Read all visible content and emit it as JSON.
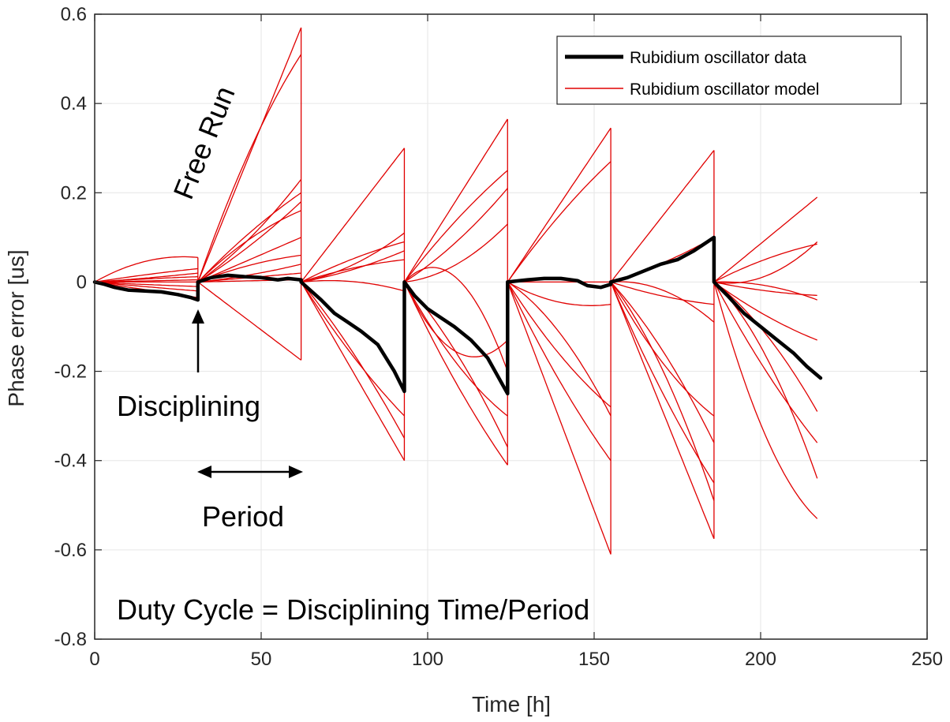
{
  "chart_data": {
    "type": "line",
    "xlabel": "Time [h]",
    "ylabel": "Phase error [us]",
    "xlim": [
      0,
      250
    ],
    "ylim": [
      -0.8,
      0.6
    ],
    "xticks": [
      0,
      50,
      100,
      150,
      200,
      250
    ],
    "xtick_labels": [
      "0",
      "50",
      "100",
      "150",
      "200",
      "250"
    ],
    "yticks": [
      -0.8,
      -0.6,
      -0.4,
      -0.2,
      0,
      0.2,
      0.4,
      0.6
    ],
    "ytick_labels": [
      "-0.8",
      "-0.6",
      "-0.4",
      "-0.2",
      "0",
      "0.2",
      "0.4",
      "0.6"
    ],
    "grid": true,
    "legend_position": "top-right",
    "colors": {
      "data": "#000000",
      "model": "#e00000",
      "grid": "#e6e6e6",
      "axis": "#262626"
    },
    "legend": [
      {
        "label": "Rubidium oscillator data",
        "style": "data"
      },
      {
        "label": "Rubidium oscillator model",
        "style": "model"
      }
    ],
    "data_series": {
      "name": "Rubidium oscillator data",
      "x": [
        0,
        3,
        6,
        10,
        15,
        20,
        25,
        29,
        31,
        31,
        35,
        40,
        45,
        50,
        55,
        58,
        62,
        62,
        68,
        72,
        76,
        80,
        85,
        90,
        93,
        93,
        96,
        100,
        104,
        108,
        113,
        118,
        121,
        124,
        124,
        130,
        135,
        140,
        145,
        148,
        152,
        155,
        155,
        160,
        165,
        170,
        175,
        180,
        184,
        186,
        186,
        190,
        195,
        200,
        205,
        210,
        214,
        218
      ],
      "y": [
        0,
        -0.005,
        -0.012,
        -0.018,
        -0.02,
        -0.022,
        -0.028,
        -0.035,
        -0.04,
        0,
        0.01,
        0.015,
        0.012,
        0.01,
        0.005,
        0.008,
        0.005,
        0,
        -0.04,
        -0.07,
        -0.09,
        -0.11,
        -0.14,
        -0.2,
        -0.245,
        0,
        -0.03,
        -0.06,
        -0.08,
        -0.1,
        -0.13,
        -0.17,
        -0.21,
        -0.25,
        0,
        0.005,
        0.008,
        0.008,
        0.003,
        -0.008,
        -0.012,
        -0.005,
        0,
        0.01,
        0.025,
        0.04,
        0.05,
        0.07,
        0.09,
        0.1,
        0,
        -0.03,
        -0.07,
        -0.1,
        -0.13,
        -0.16,
        -0.19,
        -0.215
      ]
    },
    "model_segments": [
      {
        "x_start": 0,
        "x_end": 31,
        "end_values": [
          0.055,
          0.03,
          0.02,
          0.012,
          0.005,
          0,
          -0.01,
          -0.02,
          -0.035
        ],
        "curvatures": [
          1.4,
          0.2,
          -0.2,
          0.3,
          0,
          -0.3,
          0.2,
          0.1,
          0
        ]
      },
      {
        "x_start": 31,
        "x_end": 62,
        "end_values": [
          0.57,
          0.51,
          0.23,
          0.2,
          0.18,
          0.16,
          0.1,
          0.06,
          0.04,
          0.02,
          0.005,
          -0.175
        ],
        "curvatures": [
          0,
          0.3,
          -0.3,
          0.2,
          -0.2,
          0.4,
          0,
          0.5,
          -0.4,
          0,
          0.2,
          0
        ]
      },
      {
        "x_start": 62,
        "x_end": 93,
        "end_values": [
          0.3,
          0.11,
          0.09,
          0.07,
          0.05,
          -0.02,
          -0.3,
          -0.35,
          -0.4
        ],
        "curvatures": [
          0,
          -0.6,
          0.3,
          -0.4,
          0.5,
          -2.2,
          0.2,
          -0.2,
          0
        ]
      },
      {
        "x_start": 93,
        "x_end": 124,
        "end_values": [
          0.365,
          0.25,
          0.21,
          0.13,
          -0.13,
          -0.2,
          -0.3,
          -0.37,
          -0.41
        ],
        "curvatures": [
          0,
          0.2,
          -0.3,
          -0.8,
          2.8,
          -2.2,
          0.4,
          -0.3,
          0.2
        ]
      },
      {
        "x_start": 124,
        "x_end": 155,
        "end_values": [
          0.345,
          0.27,
          0.0,
          -0.05,
          -0.28,
          -0.3,
          -0.4,
          -0.61
        ],
        "curvatures": [
          0,
          0.2,
          3.0,
          1.6,
          0.3,
          -0.5,
          0.2,
          0
        ]
      },
      {
        "x_start": 155,
        "x_end": 186,
        "end_values": [
          0.295,
          0.1,
          -0.05,
          -0.09,
          -0.3,
          -0.36,
          -0.45,
          -0.49,
          -0.575
        ],
        "curvatures": [
          0,
          -0.3,
          0.5,
          -1.2,
          0.4,
          -0.3,
          0.2,
          -0.4,
          0
        ]
      },
      {
        "x_start": 186,
        "x_end": 217,
        "end_values": [
          0.19,
          0.09,
          0.085,
          -0.03,
          -0.04,
          -0.13,
          -0.29,
          -0.36,
          -0.44,
          -0.53
        ],
        "curvatures": [
          0,
          -1.4,
          0.4,
          0.6,
          -1.2,
          0.3,
          -0.4,
          0.2,
          -0.5,
          0.6
        ]
      }
    ],
    "annotations": {
      "free_run": "Free Run",
      "disciplining": "Disciplining",
      "period": "Period",
      "duty_cycle": "Duty Cycle = Disciplining Time/Period"
    }
  }
}
